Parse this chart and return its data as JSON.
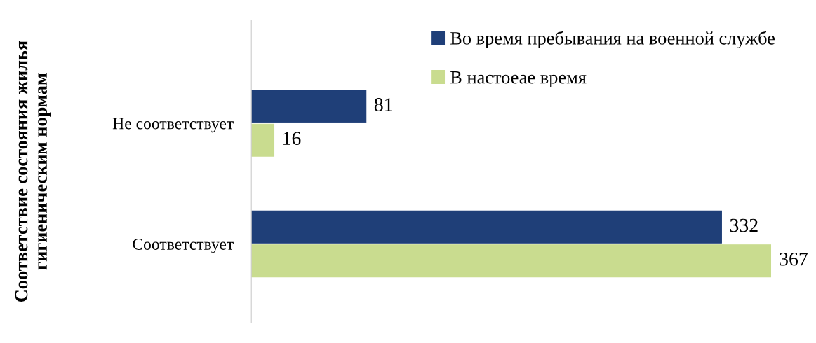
{
  "chart_data": {
    "type": "bar",
    "orientation": "horizontal",
    "ylabel": "Соответствие состояния жилья гигиеническим нормам",
    "categories": [
      "Не соответствует",
      "Соответствует"
    ],
    "series": [
      {
        "name": "Во время пребывания на военной службе",
        "color": "#1f3f78",
        "values": [
          81,
          332
        ]
      },
      {
        "name": "В настоеае время",
        "color": "#c9dc8f",
        "values": [
          16,
          367
        ]
      }
    ],
    "data_labels": true,
    "legend": "top right",
    "tick_labels": "y",
    "grid": false
  }
}
